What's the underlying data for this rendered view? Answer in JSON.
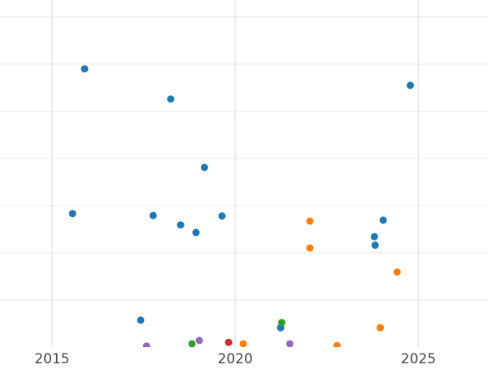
{
  "chart_data": {
    "type": "scatter",
    "title": "",
    "xlabel": "",
    "ylabel": "",
    "xlim": [
      2013.58,
      2026.9
    ],
    "ylim": [
      0,
      7.36
    ],
    "x_ticks": [
      "2015",
      "2020",
      "2025"
    ],
    "x_tick_values": [
      2015,
      2020,
      2025
    ],
    "y_grid_values": [
      1,
      2,
      3,
      4,
      5,
      6,
      7
    ],
    "grid": true,
    "series": [
      {
        "color": "#1f77b4",
        "points": [
          [
            2015.89,
            5.9
          ],
          [
            2018.24,
            5.26
          ],
          [
            2024.78,
            5.55
          ],
          [
            2019.16,
            3.81
          ],
          [
            2015.56,
            2.83
          ],
          [
            2017.76,
            2.79
          ],
          [
            2018.51,
            2.59
          ],
          [
            2018.93,
            2.43
          ],
          [
            2019.64,
            2.78
          ],
          [
            2024.04,
            2.69
          ],
          [
            2023.8,
            2.34
          ],
          [
            2023.82,
            2.16
          ],
          [
            2017.42,
            0.57
          ],
          [
            2021.24,
            0.41
          ]
        ]
      },
      {
        "color": "#ff7f0e",
        "points": [
          [
            2022.04,
            2.67
          ],
          [
            2022.04,
            2.1
          ],
          [
            2024.42,
            1.59
          ],
          [
            2023.96,
            0.41
          ],
          [
            2020.22,
            0.07
          ],
          [
            2022.78,
            0.03
          ]
        ]
      },
      {
        "color": "#2ca02c",
        "points": [
          [
            2021.27,
            0.52
          ],
          [
            2018.82,
            0.07
          ]
        ]
      },
      {
        "color": "#9467bd",
        "points": [
          [
            2017.58,
            0.02
          ],
          [
            2019.02,
            0.14
          ],
          [
            2021.49,
            0.07
          ]
        ]
      },
      {
        "color": "#d62728",
        "points": [
          [
            2019.82,
            0.1
          ]
        ]
      }
    ]
  }
}
